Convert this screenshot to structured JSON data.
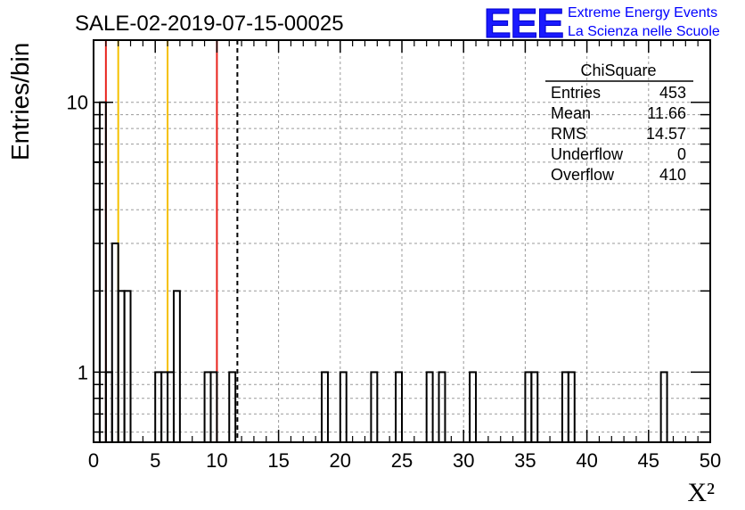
{
  "chart_data": {
    "type": "bar",
    "title": "SALE-02-2019-07-15-00025",
    "xlabel": "X²",
    "ylabel": "Entries/bin",
    "xlim": [
      0,
      50
    ],
    "ylim": [
      0.55,
      17
    ],
    "yscale": "log",
    "x_ticks": [
      "0",
      "5",
      "10",
      "15",
      "20",
      "25",
      "30",
      "35",
      "40",
      "45",
      "50"
    ],
    "y_ticks": [
      "1",
      "10"
    ],
    "grid": true,
    "bin_width": 0.5,
    "bins": [
      {
        "x": 0.0,
        "y": 6
      },
      {
        "x": 0.5,
        "y": 10
      },
      {
        "x": 1.0,
        "y": 1
      },
      {
        "x": 1.5,
        "y": 3
      },
      {
        "x": 2.0,
        "y": 2
      },
      {
        "x": 2.5,
        "y": 2
      },
      {
        "x": 5.0,
        "y": 1
      },
      {
        "x": 5.5,
        "y": 1
      },
      {
        "x": 6.0,
        "y": 1
      },
      {
        "x": 6.5,
        "y": 2
      },
      {
        "x": 9.0,
        "y": 1
      },
      {
        "x": 9.5,
        "y": 1
      },
      {
        "x": 11.0,
        "y": 1
      },
      {
        "x": 18.5,
        "y": 1
      },
      {
        "x": 20.0,
        "y": 1
      },
      {
        "x": 22.5,
        "y": 1
      },
      {
        "x": 24.5,
        "y": 1
      },
      {
        "x": 27.0,
        "y": 1
      },
      {
        "x": 28.0,
        "y": 1
      },
      {
        "x": 30.5,
        "y": 1
      },
      {
        "x": 35.0,
        "y": 1
      },
      {
        "x": 35.5,
        "y": 1
      },
      {
        "x": 38.0,
        "y": 1
      },
      {
        "x": 38.5,
        "y": 1
      },
      {
        "x": 46.0,
        "y": 1
      }
    ],
    "vertical_lines": [
      {
        "x": 1.0,
        "color": "#e8221c",
        "style": "solid"
      },
      {
        "x": 2.0,
        "color": "#f5c100",
        "style": "solid"
      },
      {
        "x": 6.0,
        "color": "#f5c100",
        "style": "solid"
      },
      {
        "x": 10.0,
        "color": "#e8221c",
        "style": "solid"
      },
      {
        "x": 11.66,
        "color": "#000000",
        "style": "dashed"
      }
    ],
    "stats": {
      "name": "ChiSquare",
      "rows": [
        {
          "label": "Entries",
          "value": "453"
        },
        {
          "label": "Mean",
          "value": "11.66"
        },
        {
          "label": "RMS",
          "value": "14.57"
        },
        {
          "label": "Underflow",
          "value": "0"
        },
        {
          "label": "Overflow",
          "value": "410"
        }
      ]
    },
    "logo": {
      "mark": "EEE",
      "line1": "Extreme Energy Events",
      "line2": "La Scienza nelle Scuole",
      "color": "#0000ff"
    }
  }
}
